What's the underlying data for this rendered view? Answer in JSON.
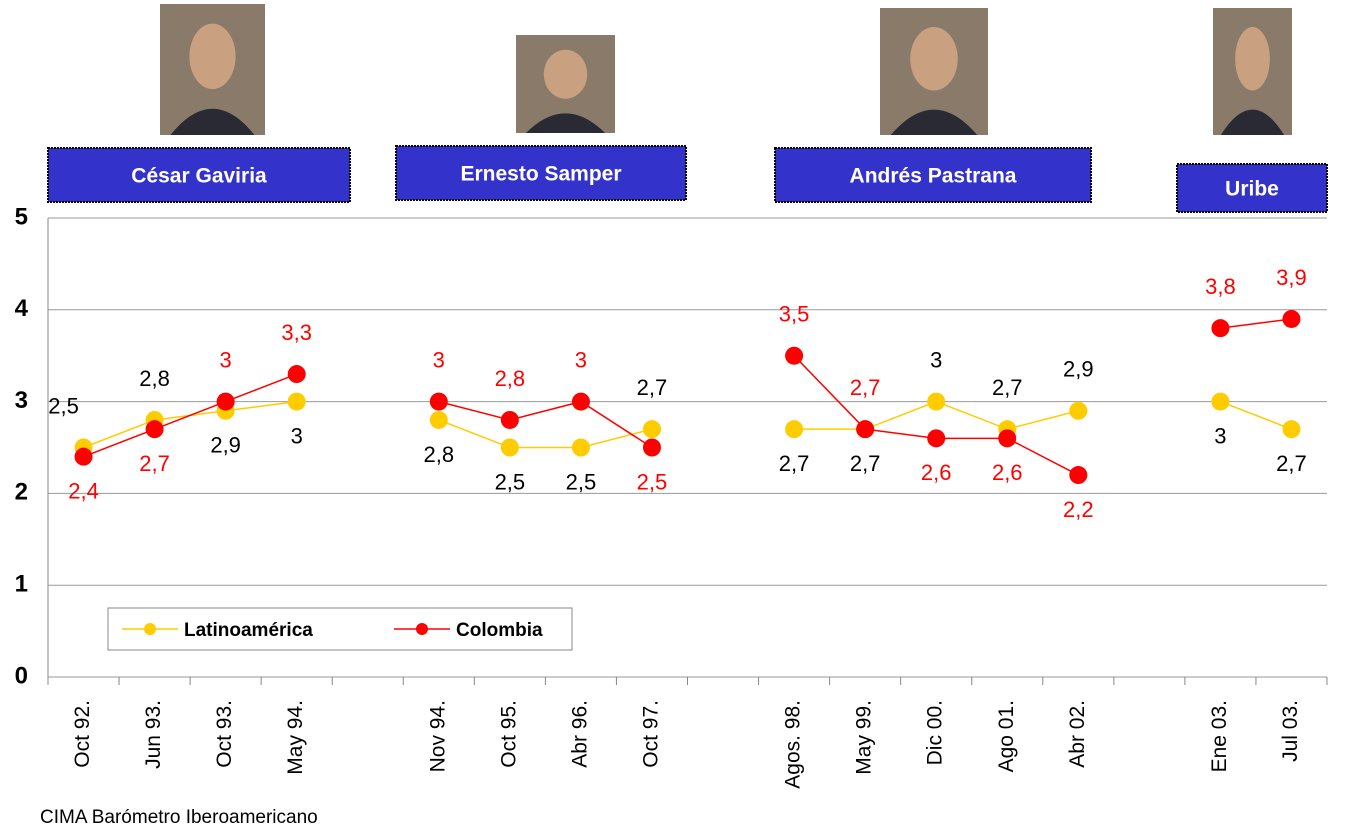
{
  "chart_data": {
    "type": "line",
    "categories": [
      "Oct 92.",
      "Jun 93.",
      "Oct 93.",
      "May 94.",
      null,
      "Nov 94.",
      "Oct 95.",
      "Abr 96.",
      "Oct 97.",
      null,
      "Agos. 98.",
      "May 99.",
      "Dic 00.",
      "Ago 01.",
      "Abr 02.",
      null,
      "Ene 03.",
      "Jul 03."
    ],
    "series": [
      {
        "name": "Latinoamérica",
        "color": "#ffcc00",
        "values": [
          2.5,
          2.8,
          2.9,
          3,
          null,
          2.8,
          2.5,
          2.5,
          2.7,
          null,
          2.7,
          2.7,
          3,
          2.7,
          2.9,
          null,
          3,
          2.7
        ],
        "value_labels": [
          "2,5",
          "2,8",
          "2,9",
          "3",
          null,
          "2,8",
          "2,5",
          "2,5",
          "2,7",
          null,
          "2,7",
          "2,7",
          "3",
          "2,7",
          "2,9",
          null,
          "3",
          "2,7"
        ],
        "label_color": "#000000"
      },
      {
        "name": "Colombia",
        "color": "#ff0000",
        "values": [
          2.4,
          2.7,
          3,
          3.3,
          null,
          3,
          2.8,
          3,
          2.5,
          null,
          3.5,
          2.7,
          2.6,
          2.6,
          2.2,
          null,
          3.8,
          3.9
        ],
        "value_labels": [
          "2,4",
          "2,7",
          "3",
          "3,3",
          null,
          "3",
          "2,8",
          "3",
          "2,5",
          null,
          "3,5",
          "2,7",
          "2,6",
          "2,6",
          "2,2",
          null,
          "3,8",
          "3,9"
        ],
        "label_color": "#ff0000"
      }
    ],
    "ylim": [
      0,
      5
    ],
    "yticks": [
      0,
      1,
      2,
      3,
      4,
      5
    ],
    "grid": true,
    "annotations": [
      "César Gaviria",
      "Ernesto Samper",
      "Andrés Pastrana",
      "Uribe"
    ],
    "source": "CIMA  Barómetro Iberoamericano"
  }
}
